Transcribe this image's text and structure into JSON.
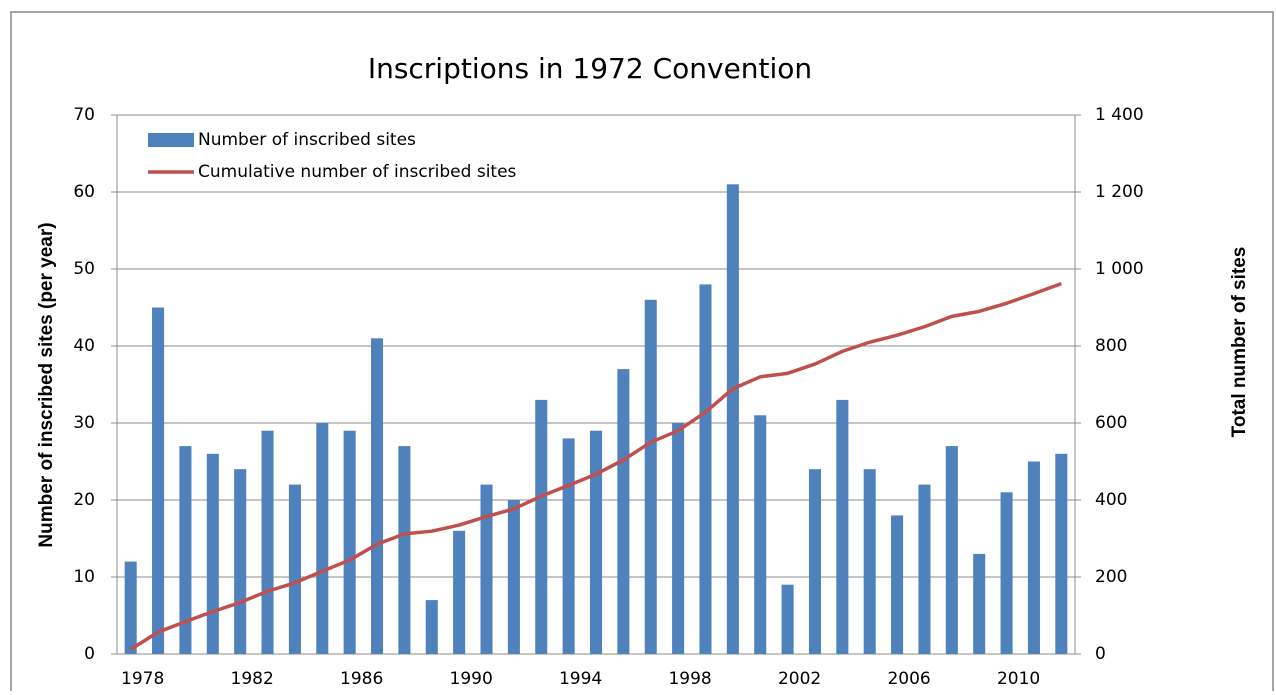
{
  "chart_data": {
    "type": "bar_line",
    "title": "Inscriptions in 1972 Convention",
    "y_label": "Number of inscribed sites (per year)",
    "y2_label": "Total number of sites",
    "categories": [
      "1978",
      null,
      null,
      null,
      "1982",
      null,
      null,
      null,
      "1986",
      null,
      null,
      null,
      "1990",
      null,
      null,
      null,
      "1994",
      null,
      null,
      null,
      "1998",
      null,
      null,
      null,
      "2002",
      null,
      null,
      null,
      "2006",
      null,
      null,
      null,
      "2010",
      null,
      null
    ],
    "series": [
      {
        "name": "Number of inscribed sites",
        "color": "#4f81bd",
        "kind": "bar",
        "values": [
          12,
          45,
          27,
          26,
          24,
          29,
          22,
          30,
          29,
          41,
          27,
          7,
          16,
          22,
          20,
          33,
          28,
          29,
          37,
          46,
          30,
          48,
          61,
          31,
          9,
          24,
          33,
          24,
          18,
          22,
          27,
          13,
          21,
          25,
          26
        ]
      },
      {
        "name": "Cumulative number of inscribed sites",
        "color": "#c0504d",
        "kind": "line",
        "axis": "y2",
        "values": [
          12,
          57,
          84,
          110,
          134,
          163,
          185,
          215,
          244,
          285,
          312,
          319,
          335,
          357,
          377,
          410,
          438,
          467,
          504,
          550,
          580,
          628,
          689,
          720,
          729,
          753,
          786,
          810,
          828,
          850,
          877,
          890,
          911,
          936,
          962
        ]
      }
    ],
    "ylim": [
      0,
      70
    ],
    "yticks": [
      0,
      10,
      20,
      30,
      40,
      50,
      60,
      70
    ],
    "y2lim": [
      0,
      1400
    ],
    "y2ticks": [
      0,
      200,
      400,
      600,
      800,
      {
        "value": 1000,
        "label": "1 000"
      },
      {
        "value": 1200,
        "label": "1 200"
      },
      {
        "value": 1400,
        "label": "1 400"
      }
    ],
    "grid": true,
    "legend": "top-left"
  }
}
